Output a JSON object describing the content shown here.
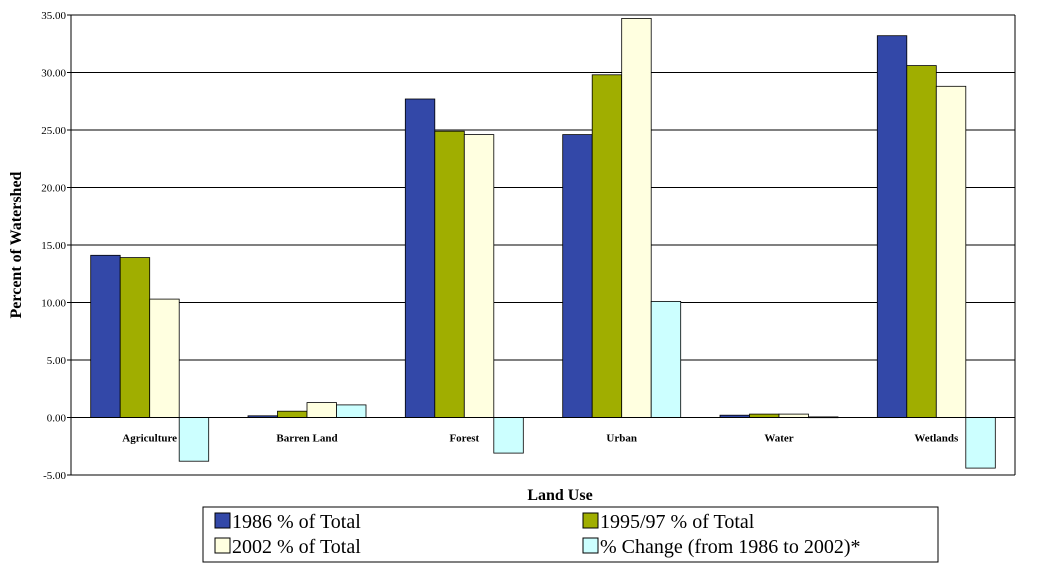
{
  "chart_data": {
    "type": "bar",
    "title": "",
    "xlabel": "Land Use",
    "ylabel": "Percent of Watershed",
    "ylim": [
      -5,
      35
    ],
    "ytick_step": 5,
    "ytick_labels": [
      "-5.00",
      "0.00",
      "5.00",
      "10.00",
      "15.00",
      "20.00",
      "25.00",
      "30.00",
      "35.00"
    ],
    "grid": true,
    "legend": "bottom",
    "categories": [
      "Agriculture",
      "Barren Land",
      "Forest",
      "Urban",
      "Water",
      "Wetlands"
    ],
    "series": [
      {
        "name": "1986 % of Total",
        "color": "#3348a8",
        "values": [
          14.1,
          0.15,
          27.7,
          24.6,
          0.2,
          33.2
        ]
      },
      {
        "name": "1995/97 % of Total",
        "color": "#a0ae00",
        "values": [
          13.9,
          0.55,
          24.9,
          29.8,
          0.3,
          30.6
        ]
      },
      {
        "name": "2002 % of Total",
        "color": "#ffffe0",
        "values": [
          10.3,
          1.3,
          24.6,
          34.7,
          0.3,
          28.8
        ]
      },
      {
        "name": "% Change (from 1986 to 2002)*",
        "color": "#ccffff",
        "values": [
          -3.8,
          1.1,
          -3.1,
          10.1,
          0.05,
          -4.4
        ]
      }
    ]
  }
}
